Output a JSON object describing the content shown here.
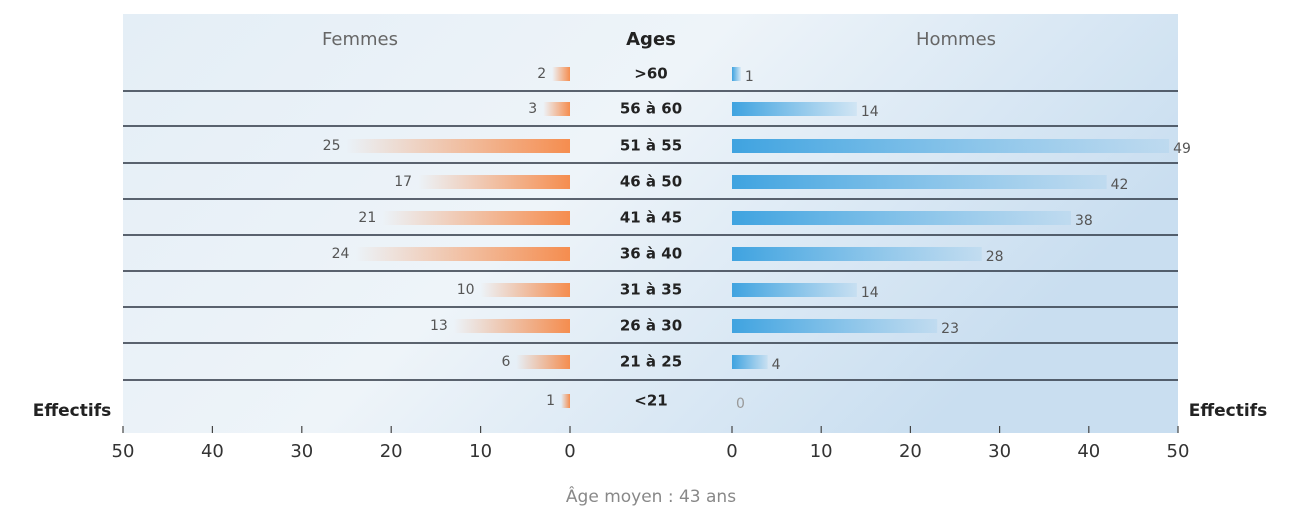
{
  "chart_data": {
    "type": "pyramid",
    "category_label": "Ages",
    "xlabel": "Effectifs",
    "categories": [
      ">60",
      "56 à 60",
      "51 à 55",
      "46 à 50",
      "41 à 45",
      "36 à 40",
      "31 à 35",
      "26 à 30",
      "21 à 25",
      "<21"
    ],
    "series": [
      {
        "name": "Femmes",
        "color": "#f58d4f",
        "side": "left",
        "values": [
          2,
          3,
          25,
          17,
          21,
          24,
          10,
          13,
          6,
          1
        ]
      },
      {
        "name": "Hommes",
        "color": "#3fa3e0",
        "side": "right",
        "values": [
          1,
          14,
          49,
          42,
          38,
          28,
          14,
          23,
          4,
          0
        ]
      }
    ],
    "xlim": [
      0,
      50
    ],
    "xticks": [
      0,
      10,
      20,
      30,
      40,
      50
    ],
    "annotation": "Âge moyen : 43 ans"
  }
}
